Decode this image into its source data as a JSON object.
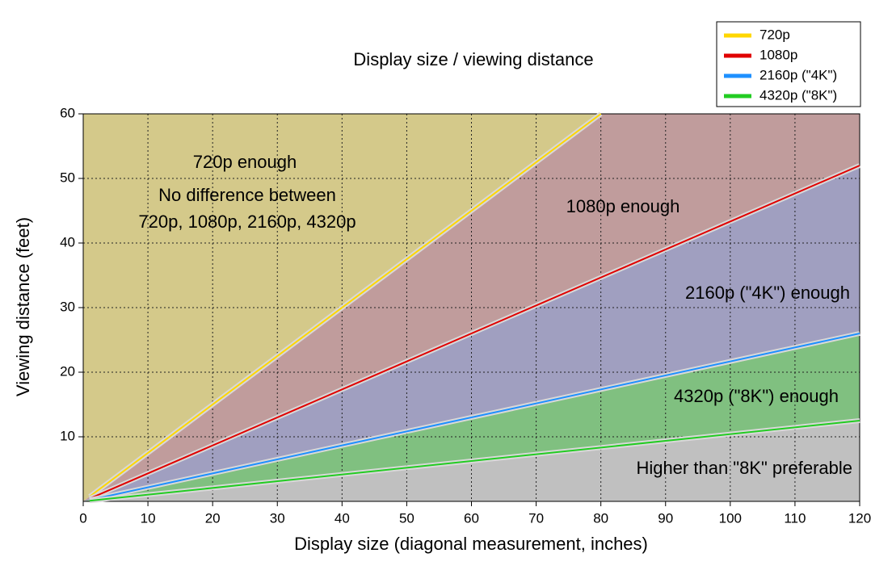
{
  "chart_data": {
    "type": "line",
    "title": "Display size / viewing distance",
    "x_label": "Display size (diagonal measurement, inches)",
    "y_label": "Viewing distance (feet)",
    "series": [
      {
        "name": "720p",
        "color": "#ffd700",
        "x": [
          1,
          80
        ],
        "values": [
          0.75,
          60
        ]
      },
      {
        "name": "1080p",
        "color": "#e00000",
        "x": [
          1,
          120
        ],
        "values": [
          0.43,
          52
        ]
      },
      {
        "name": "2160p (\"4K\")",
        "color": "#1e90ff",
        "x": [
          1,
          120
        ],
        "values": [
          0.22,
          26
        ]
      },
      {
        "name": "4320p (\"8K\")",
        "color": "#22cc22",
        "x": [
          1,
          120
        ],
        "values": [
          0.1,
          12.5
        ]
      }
    ],
    "region_colors": [
      "#d4c98a",
      "#c09c9c",
      "#a09fc0",
      "#80c080",
      "#c0c0c0"
    ],
    "annotations": [
      "720p enough",
      "No difference between",
      "720p, 1080p, 2160p, 4320p",
      "1080p enough",
      "2160p (\"4K\") enough",
      "4320p (\"8K\") enough",
      "Higher than \"8K\" preferable"
    ],
    "xlim": [
      0,
      120
    ],
    "xticks": [
      0,
      10,
      20,
      30,
      40,
      50,
      60,
      70,
      80,
      90,
      100,
      110,
      120
    ],
    "ylim": [
      0,
      60
    ],
    "yticks": [
      10,
      20,
      30,
      40,
      50,
      60
    ],
    "grid": true,
    "legend": "top-right"
  }
}
